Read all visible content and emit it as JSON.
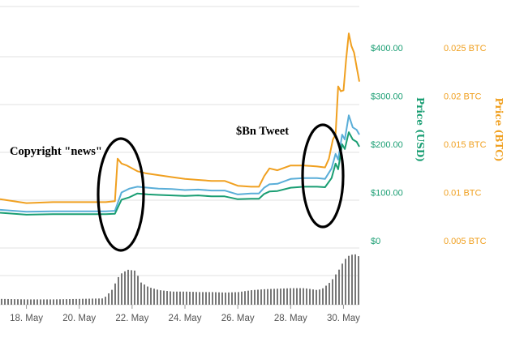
{
  "chart_data": {
    "type": "line",
    "title": "",
    "colors": {
      "usd": "#1a9e73",
      "btc": "#f0a020",
      "blue": "#5aaed8",
      "volume": "#777777",
      "grid": "#e0e0e0"
    },
    "x_axis": {
      "type": "date",
      "ticks": [
        "18. May",
        "20. May",
        "22. May",
        "24. May",
        "26. May",
        "28. May",
        "30. May"
      ],
      "range": [
        "17. May",
        "30.6 May"
      ]
    },
    "y_axis_usd": {
      "label": "Price (USD)",
      "ticks": [
        "$0",
        "$100.00",
        "$200.00",
        "$300.00",
        "$400.00"
      ],
      "tick_values": [
        0,
        100,
        200,
        300,
        400
      ],
      "range": [
        0,
        470
      ]
    },
    "y_axis_btc": {
      "label": "Price (BTC)",
      "ticks": [
        "0.005 BTC",
        "0.01 BTC",
        "0.015 BTC",
        "0.02 BTC",
        "0.025 BTC"
      ],
      "tick_values": [
        0.005,
        0.01,
        0.015,
        0.02,
        0.025
      ],
      "range": [
        0.005,
        0.0279
      ]
    },
    "annotations": [
      {
        "text": "Copyright \"news\"",
        "x": 21.2
      },
      {
        "text": "$Bn Tweet",
        "x": 29.3
      }
    ],
    "series": [
      {
        "key": "usd",
        "axis": "usd",
        "x": [
          17,
          18,
          19,
          20,
          21,
          21.35,
          21.6,
          21.9,
          22.2,
          22.6,
          23,
          23.5,
          24,
          24.5,
          25,
          25.5,
          26,
          26.5,
          26.8,
          27,
          27.2,
          27.5,
          28,
          28.5,
          29,
          29.3,
          29.55,
          29.7,
          29.8,
          29.95,
          30.05,
          30.2,
          30.35,
          30.5,
          30.6
        ],
        "y": [
          58,
          54,
          55,
          55,
          55,
          56,
          85,
          90,
          98,
          96,
          95,
          94,
          93,
          94,
          92,
          92,
          86,
          87,
          87,
          97,
          102,
          103,
          110,
          112,
          112,
          111,
          130,
          160,
          148,
          200,
          190,
          225,
          210,
          205,
          195
        ]
      },
      {
        "key": "blue",
        "axis": "usd",
        "x": [
          17,
          18,
          19,
          20,
          21,
          21.35,
          21.6,
          21.9,
          22.2,
          22.6,
          23,
          23.5,
          24,
          24.5,
          25,
          25.5,
          26,
          26.5,
          26.8,
          27,
          27.2,
          27.5,
          28,
          28.5,
          29,
          29.3,
          29.55,
          29.7,
          29.8,
          29.95,
          30.05,
          30.2,
          30.35,
          30.5,
          30.6
        ],
        "y": [
          64,
          60,
          61,
          61,
          61,
          62,
          100,
          108,
          112,
          110,
          108,
          107,
          105,
          106,
          104,
          104,
          96,
          98,
          98,
          110,
          117,
          118,
          128,
          130,
          130,
          128,
          150,
          180,
          168,
          220,
          210,
          260,
          235,
          230,
          220
        ]
      },
      {
        "key": "btc",
        "axis": "btc",
        "x": [
          17,
          18,
          19,
          20,
          21,
          21.35,
          21.45,
          21.6,
          21.8,
          22,
          22.2,
          22.5,
          23,
          23.5,
          24,
          24.5,
          25,
          25.5,
          26,
          26.5,
          26.8,
          27,
          27.2,
          27.5,
          28,
          28.5,
          29,
          29.3,
          29.45,
          29.6,
          29.7,
          29.8,
          29.9,
          30,
          30.1,
          30.2,
          30.3,
          30.4,
          30.5,
          30.6
        ],
        "y": [
          0.0093,
          0.0089,
          0.009,
          0.009,
          0.009,
          0.0091,
          0.0135,
          0.013,
          0.0128,
          0.0125,
          0.0122,
          0.012,
          0.0118,
          0.0116,
          0.0114,
          0.0113,
          0.0112,
          0.0112,
          0.0107,
          0.0106,
          0.0106,
          0.0117,
          0.0125,
          0.0123,
          0.0128,
          0.0128,
          0.0127,
          0.0126,
          0.0135,
          0.0155,
          0.016,
          0.021,
          0.0205,
          0.0206,
          0.0238,
          0.0265,
          0.0252,
          0.0245,
          0.023,
          0.0215
        ]
      }
    ],
    "volume": {
      "x": [
        17,
        18,
        19,
        20,
        20.9,
        21.2,
        21.5,
        21.8,
        22.1,
        22.3,
        22.6,
        23,
        23.5,
        24,
        24.5,
        25,
        25.5,
        26,
        26.5,
        27,
        27.5,
        28,
        28.5,
        29,
        29.2,
        29.5,
        29.8,
        30,
        30.2,
        30.4,
        30.6
      ],
      "values": [
        12,
        11,
        11,
        12,
        13,
        30,
        62,
        72,
        70,
        46,
        36,
        30,
        27,
        27,
        26,
        26,
        25,
        26,
        30,
        32,
        33,
        34,
        34,
        30,
        34,
        48,
        72,
        92,
        102,
        104,
        98
      ],
      "max": 110
    }
  }
}
